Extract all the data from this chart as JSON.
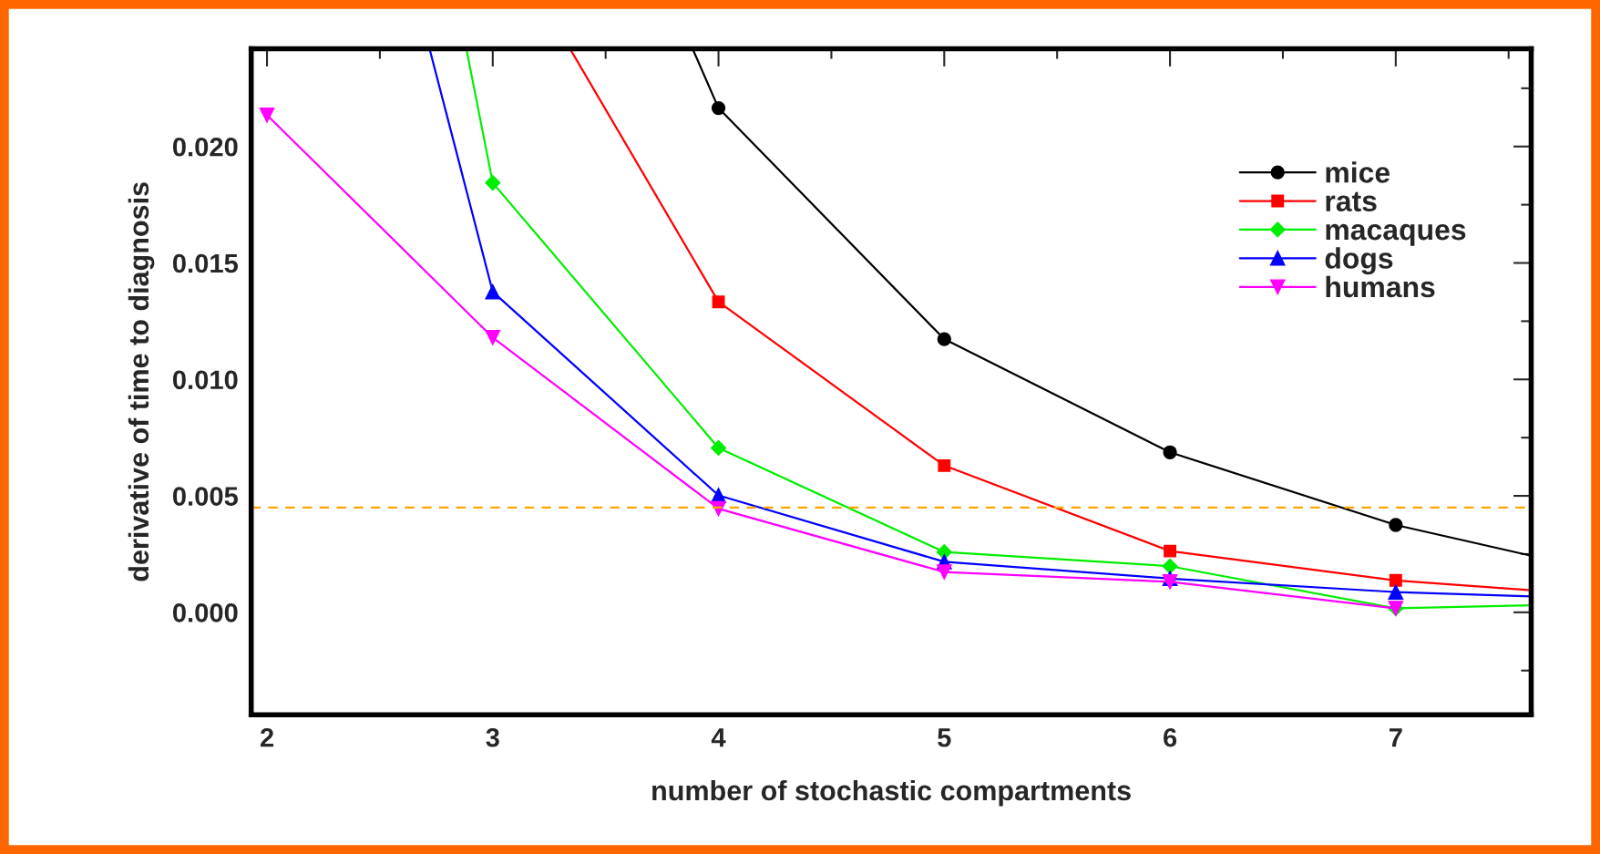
{
  "chart_data": {
    "type": "line",
    "xlabel": "number of stochastic compartments",
    "ylabel": "derivative of time to diagnosis",
    "xlim": [
      1.93,
      7.6
    ],
    "ylim": [
      -0.0044,
      0.0242
    ],
    "xticks": [
      2,
      {
        "value": 2.5,
        "label": null
      },
      3,
      {
        "value": 3.5,
        "label": null
      },
      4,
      {
        "value": 4.5,
        "label": null
      },
      5,
      {
        "value": 5.5,
        "label": null
      },
      6,
      {
        "value": 6.5,
        "label": null
      },
      7,
      {
        "value": 7.5,
        "label": null
      }
    ],
    "yticks": [
      {
        "value": -0.0025,
        "label": null
      },
      {
        "value": 0,
        "label": "0.000"
      },
      {
        "value": 0.0025,
        "label": null
      },
      {
        "value": 0.005,
        "label": "0.005"
      },
      {
        "value": 0.0075,
        "label": null
      },
      {
        "value": 0.01,
        "label": "0.010"
      },
      {
        "value": 0.0125,
        "label": null
      },
      {
        "value": 0.015,
        "label": "0.015"
      },
      {
        "value": 0.0175,
        "label": null
      },
      {
        "value": 0.02,
        "label": "0.020"
      },
      {
        "value": 0.0225,
        "label": null
      }
    ],
    "legend": "top right",
    "grid": false,
    "ref_lines": [
      {
        "axis": "y",
        "value": 0.0045,
        "color": "#ffa500",
        "line_style": "dashed"
      }
    ],
    "series": [
      {
        "name": "mice",
        "color": "#000000",
        "marker": "circle",
        "x": [
          3.885,
          4,
          5,
          6,
          7,
          7.6
        ],
        "values": [
          0.0242,
          0.02165,
          0.01173,
          0.00687,
          0.00375,
          0.00243
        ]
      },
      {
        "name": "rats",
        "color": "#ff0000",
        "marker": "square",
        "x": [
          3.342,
          4,
          5,
          6,
          7,
          7.6
        ],
        "values": [
          0.0242,
          0.01333,
          0.0063,
          0.00263,
          0.00137,
          0.00095
        ]
      },
      {
        "name": "macaques",
        "color": "#00ee00",
        "marker": "diamond",
        "x": [
          2.883,
          3,
          4,
          5,
          6,
          7,
          7.6
        ],
        "values": [
          0.0242,
          0.01844,
          0.00706,
          0.00259,
          0.00198,
          0.00017,
          0.0003
        ]
      },
      {
        "name": "dogs",
        "color": "#0000ff",
        "marker": "triangle",
        "x": [
          2.72,
          3,
          4,
          5,
          6,
          7,
          7.6
        ],
        "values": [
          0.0242,
          0.01376,
          0.00502,
          0.00217,
          0.00145,
          0.00087,
          0.00068
        ]
      },
      {
        "name": "humans",
        "color": "#ff00ff",
        "marker": "triangle_down",
        "x": [
          2,
          3,
          4,
          5,
          6,
          7
        ],
        "values": [
          0.02135,
          0.0118,
          0.00445,
          0.00173,
          0.00131,
          0.00017
        ]
      }
    ]
  }
}
